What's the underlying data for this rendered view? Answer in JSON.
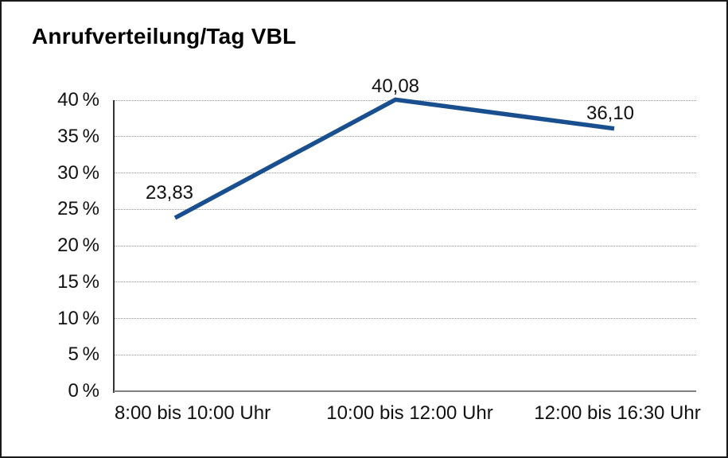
{
  "chart_data": {
    "type": "line",
    "title": "Anrufverteilung/Tag VBL",
    "categories": [
      "8:00 bis 10:00 Uhr",
      "10:00 bis 12:00 Uhr",
      "12:00 bis 16:30 Uhr"
    ],
    "values": [
      23.83,
      40.08,
      36.1
    ],
    "value_labels": [
      "23,83",
      "40,08",
      "36,10"
    ],
    "xlabel": "",
    "ylabel": "",
    "ylim": [
      0,
      40
    ],
    "ytick_step": 5,
    "ytick_labels": [
      "40 %",
      "35 %",
      "30 %",
      "25 %",
      "20 %",
      "15 %",
      "10 %",
      "5 %",
      "0 %"
    ],
    "grid": "horizontal-dotted",
    "legend": "none"
  },
  "colors": {
    "line": "#1A4F8F",
    "grid": "#949494",
    "x_axis": "#808080",
    "y_axis": "#333333",
    "text": "#111111",
    "title": "#000000",
    "frame": "#1A1A1A",
    "background": "#FFFFFF"
  }
}
